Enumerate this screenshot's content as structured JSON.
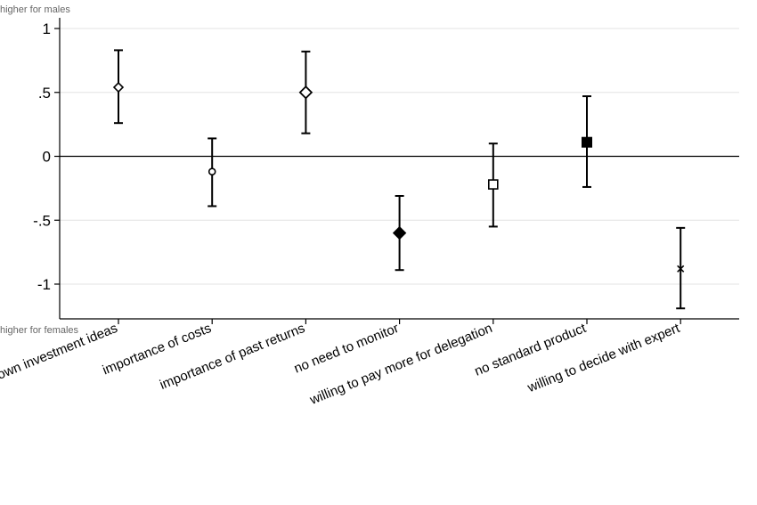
{
  "chart_data": {
    "type": "scatter",
    "subtype": "point-estimate-with-confidence-intervals",
    "top_note": "higher for males",
    "bottom_note": "higher for females",
    "y_ticks": [
      {
        "value": 1,
        "label": "1"
      },
      {
        "value": 0.5,
        "label": ".5"
      },
      {
        "value": 0,
        "label": "0"
      },
      {
        "value": -0.5,
        "label": "-.5"
      },
      {
        "value": -1,
        "label": "-1"
      }
    ],
    "ylim": [
      -1.27,
      1.05
    ],
    "zero_line": true,
    "grid": true,
    "categories": [
      "own investment ideas",
      "importance of costs",
      "importance of past returns",
      "no need to monitor",
      "willing to pay more for delegation",
      "no standard product",
      "willing to decide with expert"
    ],
    "points": [
      {
        "category": "own investment ideas",
        "estimate": 0.54,
        "ci_low": 0.26,
        "ci_high": 0.83,
        "marker": "diamond-open-small"
      },
      {
        "category": "importance of costs",
        "estimate": -0.12,
        "ci_low": -0.39,
        "ci_high": 0.14,
        "marker": "circle-open-small"
      },
      {
        "category": "importance of past returns",
        "estimate": 0.5,
        "ci_low": 0.18,
        "ci_high": 0.82,
        "marker": "diamond-open"
      },
      {
        "category": "no need to monitor",
        "estimate": -0.6,
        "ci_low": -0.89,
        "ci_high": -0.31,
        "marker": "diamond-filled"
      },
      {
        "category": "willing to pay more for delegation",
        "estimate": -0.22,
        "ci_low": -0.55,
        "ci_high": 0.1,
        "marker": "square-open"
      },
      {
        "category": "no standard product",
        "estimate": 0.11,
        "ci_low": -0.24,
        "ci_high": 0.47,
        "marker": "square-filled"
      },
      {
        "category": "willing to decide with expert",
        "estimate": -0.88,
        "ci_low": -1.19,
        "ci_high": -0.56,
        "marker": "x"
      }
    ]
  }
}
